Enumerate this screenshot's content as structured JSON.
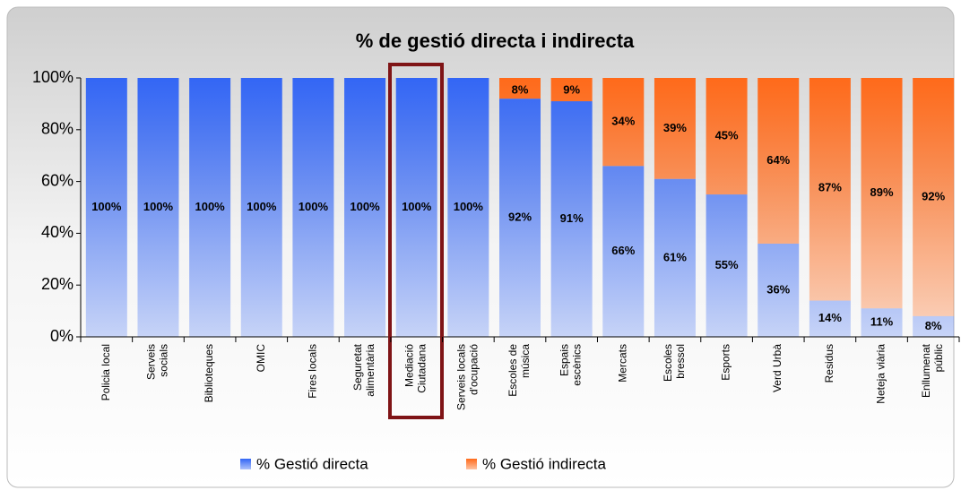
{
  "chart_data": {
    "type": "stacked_bar",
    "title": "% de gestió directa i indirecta",
    "categories": [
      "Policia local",
      "Serveis\nsocials",
      "Biblioteques",
      "OMIC",
      "Fires locals",
      "Seguretat\nalimentària",
      "Mediació\nCiutadana",
      "Serveis locals\nd'ocupació",
      "Escoles de\nmúsica",
      "Espais\nescènics",
      "Mercats",
      "Escoles\nbressol",
      "Esports",
      "Verd Urbà",
      "Residus",
      "Neteja viària",
      "Enllumenat\npúblic"
    ],
    "series": [
      {
        "name": "% Gestió directa",
        "color": "#3366f5",
        "values": [
          100,
          100,
          100,
          100,
          100,
          100,
          100,
          100,
          92,
          91,
          66,
          61,
          55,
          36,
          14,
          11,
          8
        ],
        "value_labels": [
          "100%",
          "100%",
          "100%",
          "100%",
          "100%",
          "100%",
          "100%",
          "100%",
          "92%",
          "91%",
          "66%",
          "61%",
          "55%",
          "36%",
          "14%",
          "11%",
          "8%"
        ]
      },
      {
        "name": "% Gestió indirecta",
        "color": "#ff6a1a",
        "values": [
          null,
          null,
          null,
          null,
          null,
          null,
          null,
          null,
          8,
          9,
          34,
          39,
          45,
          64,
          87,
          89,
          92
        ],
        "value_labels": [
          null,
          null,
          null,
          null,
          null,
          null,
          null,
          null,
          "8%",
          "9%",
          "34%",
          "39%",
          "45%",
          "64%",
          "87%",
          "89%",
          "92%"
        ]
      }
    ],
    "ylim": [
      0,
      100
    ],
    "yticks": [
      {
        "value": 0,
        "label": "0%"
      },
      {
        "value": 20,
        "label": "20%"
      },
      {
        "value": 40,
        "label": "40%"
      },
      {
        "value": 60,
        "label": "60%"
      },
      {
        "value": 80,
        "label": "80%"
      },
      {
        "value": 100,
        "label": "100%"
      }
    ],
    "grid": false,
    "legend": "bottom"
  }
}
